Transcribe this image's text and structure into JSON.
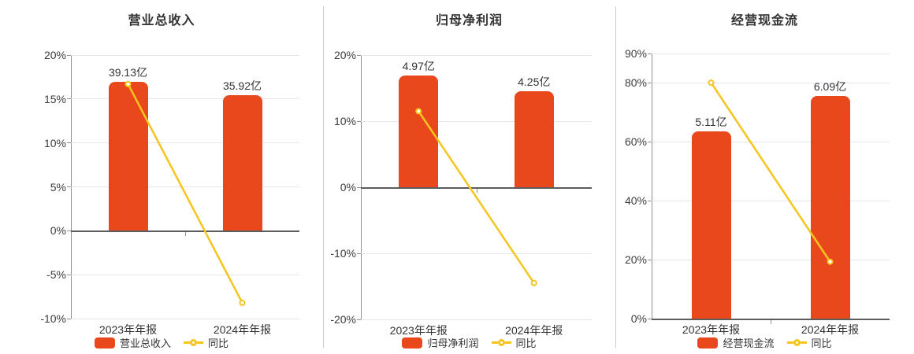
{
  "colors": {
    "bar": "#e8481b",
    "line": "#f5c51d",
    "grid": "#e3e6ef",
    "zero_line": "#5c5c5c",
    "axis": "#909090",
    "text": "#333333",
    "divider": "#cccccc"
  },
  "chart_data": [
    {
      "type": "bar",
      "title": "营业总收入",
      "categories": [
        "2023年年报",
        "2024年年报"
      ],
      "series": [
        {
          "type": "bar",
          "name": "营业总收入",
          "unit": "亿",
          "values": [
            39.13,
            35.92
          ],
          "data_labels": [
            "39.13亿",
            "35.92亿"
          ],
          "bar_top_on_pct_axis": [
            17.0,
            15.4
          ]
        },
        {
          "type": "line",
          "name": "同比",
          "unit": "%",
          "values": [
            16.7,
            -8.2
          ]
        }
      ],
      "y_axis": {
        "unit": "%",
        "min": -10,
        "max": 20,
        "ticks": [
          20,
          15,
          10,
          5,
          0,
          -5,
          -10
        ],
        "labels": [
          "20%",
          "15%",
          "10%",
          "5%",
          "0%",
          "-5%",
          "-10%"
        ]
      },
      "legend": [
        "营业总收入",
        "同比"
      ],
      "legend_position": "bottom",
      "grid": true
    },
    {
      "type": "bar",
      "title": "归母净利润",
      "categories": [
        "2023年年报",
        "2024年年报"
      ],
      "series": [
        {
          "type": "bar",
          "name": "归母净利润",
          "unit": "亿",
          "values": [
            4.97,
            4.25
          ],
          "data_labels": [
            "4.97亿",
            "4.25亿"
          ],
          "bar_top_on_pct_axis": [
            16.9,
            14.5
          ]
        },
        {
          "type": "line",
          "name": "同比",
          "unit": "%",
          "values": [
            11.5,
            -14.5
          ]
        }
      ],
      "y_axis": {
        "unit": "%",
        "min": -20,
        "max": 20,
        "ticks": [
          20,
          10,
          0,
          -10,
          -20
        ],
        "labels": [
          "20%",
          "10%",
          "0%",
          "-10%",
          "-20%"
        ]
      },
      "legend": [
        "归母净利润",
        "同比"
      ],
      "legend_position": "bottom",
      "grid": true
    },
    {
      "type": "bar",
      "title": "经营现金流",
      "categories": [
        "2023年年报",
        "2024年年报"
      ],
      "series": [
        {
          "type": "bar",
          "name": "经营现金流",
          "unit": "亿",
          "values": [
            5.11,
            6.09
          ],
          "data_labels": [
            "5.11亿",
            "6.09亿"
          ],
          "bar_top_on_pct_axis": [
            63.5,
            75.7
          ]
        },
        {
          "type": "line",
          "name": "同比",
          "unit": "%",
          "values": [
            80.1,
            19.3
          ]
        }
      ],
      "y_axis": {
        "unit": "%",
        "min": 0,
        "max": 90,
        "ticks": [
          90,
          80,
          60,
          40,
          20,
          0
        ],
        "labels": [
          "90%",
          "80%",
          "60%",
          "40%",
          "20%",
          "0%"
        ]
      },
      "legend": [
        "经营现金流",
        "同比"
      ],
      "legend_position": "bottom",
      "grid": true
    }
  ]
}
